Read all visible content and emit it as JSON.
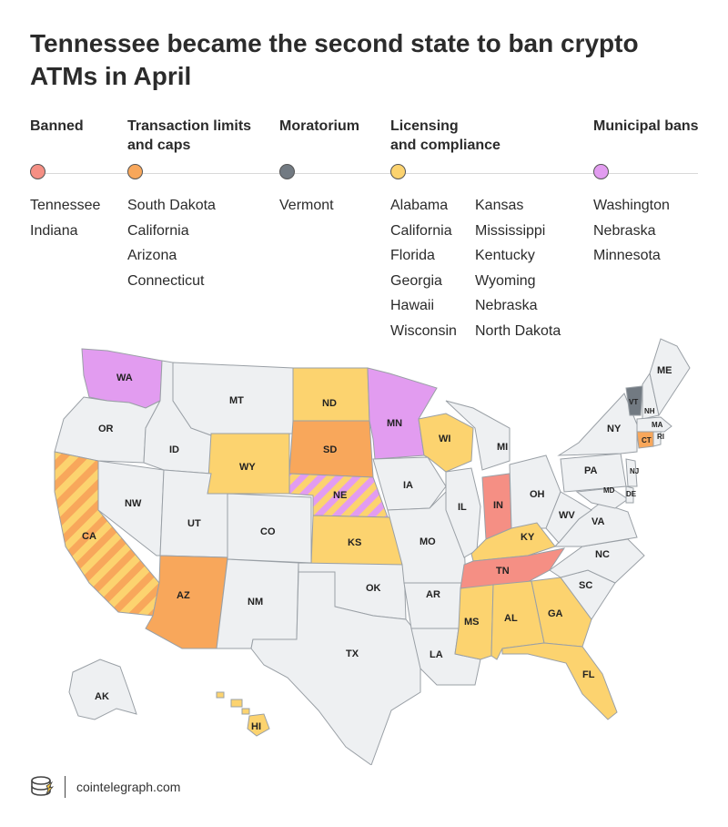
{
  "title": "Tennessee became the second state to ban crypto ATMs in April",
  "colors": {
    "banned": "#f58f84",
    "limits": "#f8a75b",
    "moratorium": "#727a82",
    "licensing": "#fcd36f",
    "municipal": "#e29cf0",
    "other": "#eef0f2"
  },
  "legend": {
    "banned": {
      "title": "Banned",
      "states": [
        "Tennessee",
        "Indiana"
      ]
    },
    "limits": {
      "title_line1": "Transaction limits",
      "title_line2": "and caps",
      "states": [
        "South Dakota",
        "California",
        "Arizona",
        "Connecticut"
      ]
    },
    "moratorium": {
      "title": "Moratorium",
      "states": [
        "Vermont"
      ]
    },
    "licensing": {
      "title_line1": "Licensing",
      "title_line2": "and compliance",
      "col1": [
        "Alabama",
        "California",
        "Florida",
        "Georgia",
        "Hawaii",
        "Wisconsin"
      ],
      "col2": [
        "Kansas",
        "Mississippi",
        "Kentucky",
        "Wyoming",
        "Nebraska",
        "North Dakota"
      ]
    },
    "municipal": {
      "title": "Municipal bans",
      "states": [
        "Washington",
        "Nebraska",
        "Minnesota"
      ]
    }
  },
  "map_labels": {
    "WA": "WA",
    "OR": "OR",
    "CA": "CA",
    "NW": "NW",
    "ID": "ID",
    "MT": "MT",
    "WY": "WY",
    "UT": "UT",
    "AZ": "AZ",
    "CO": "CO",
    "NM": "NM",
    "ND": "ND",
    "SD": "SD",
    "NE": "NE",
    "KS": "KS",
    "OK": "OK",
    "TX": "TX",
    "MN": "MN",
    "IA": "IA",
    "MO": "MO",
    "AR": "AR",
    "LA": "LA",
    "WI": "WI",
    "IL": "IL",
    "MI": "MI",
    "IN": "IN",
    "OH": "OH",
    "KY": "KY",
    "TN": "TN",
    "MS": "MS",
    "AL": "AL",
    "GA": "GA",
    "FL": "FL",
    "SC": "SC",
    "NC": "NC",
    "VA": "VA",
    "WV": "WV",
    "PA": "PA",
    "NY": "NY",
    "VT": "VT",
    "NH": "NH",
    "ME": "ME",
    "MA": "MA",
    "RI": "RI",
    "CT": "CT",
    "NJ": "NJ",
    "DE": "DE",
    "MD": "MD",
    "AK": "AK",
    "HI": "HI"
  },
  "footer": {
    "site": "cointelegraph.com",
    "logo_icon": "cointelegraph-coin-logo-icon"
  }
}
